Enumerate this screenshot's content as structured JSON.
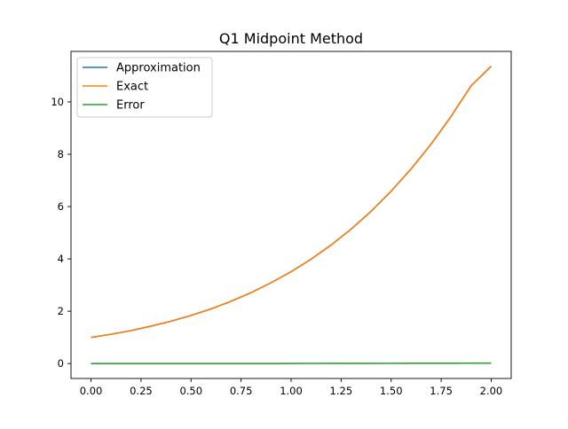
{
  "chart_data": {
    "type": "line",
    "title": "Q1 Midpoint Method",
    "xlabel": "",
    "ylabel": "",
    "xlim": [
      -0.1,
      2.1
    ],
    "ylim": [
      -0.57,
      11.93
    ],
    "x_ticks": [
      0.0,
      0.25,
      0.5,
      0.75,
      1.0,
      1.25,
      1.5,
      1.75,
      2.0
    ],
    "x_tick_labels": [
      "0.00",
      "0.25",
      "0.50",
      "0.75",
      "1.00",
      "1.25",
      "1.50",
      "1.75",
      "2.00"
    ],
    "y_ticks": [
      0,
      2,
      4,
      6,
      8,
      10
    ],
    "y_tick_labels": [
      "0",
      "2",
      "4",
      "6",
      "8",
      "10"
    ],
    "grid": false,
    "legend_position": "upper-left",
    "x": [
      0.0,
      0.1,
      0.2,
      0.3,
      0.4,
      0.5,
      0.6,
      0.7,
      0.8,
      0.9,
      1.0,
      1.1,
      1.2,
      1.3,
      1.4,
      1.5,
      1.6,
      1.7,
      1.8,
      1.9,
      2.0
    ],
    "series": [
      {
        "name": "Approximation",
        "color": "#1f77b4",
        "values": [
          1.0,
          1.12,
          1.26,
          1.43,
          1.62,
          1.84,
          2.09,
          2.38,
          2.71,
          3.09,
          3.51,
          3.99,
          4.53,
          5.14,
          5.82,
          6.59,
          7.44,
          8.39,
          9.45,
          10.62,
          11.36
        ]
      },
      {
        "name": "Exact",
        "color": "#ff7f0e",
        "values": [
          1.0,
          1.12,
          1.26,
          1.43,
          1.62,
          1.84,
          2.09,
          2.38,
          2.71,
          3.09,
          3.51,
          3.99,
          4.53,
          5.14,
          5.82,
          6.59,
          7.44,
          8.39,
          9.45,
          10.62,
          11.37
        ]
      },
      {
        "name": "Error",
        "color": "#2ca02c",
        "values": [
          0.0,
          0.0,
          0.0,
          0.0,
          0.0,
          0.0,
          0.0,
          0.0,
          0.0,
          0.0,
          0.005,
          0.006,
          0.007,
          0.008,
          0.009,
          0.01,
          0.011,
          0.012,
          0.013,
          0.014,
          0.015
        ]
      }
    ]
  }
}
